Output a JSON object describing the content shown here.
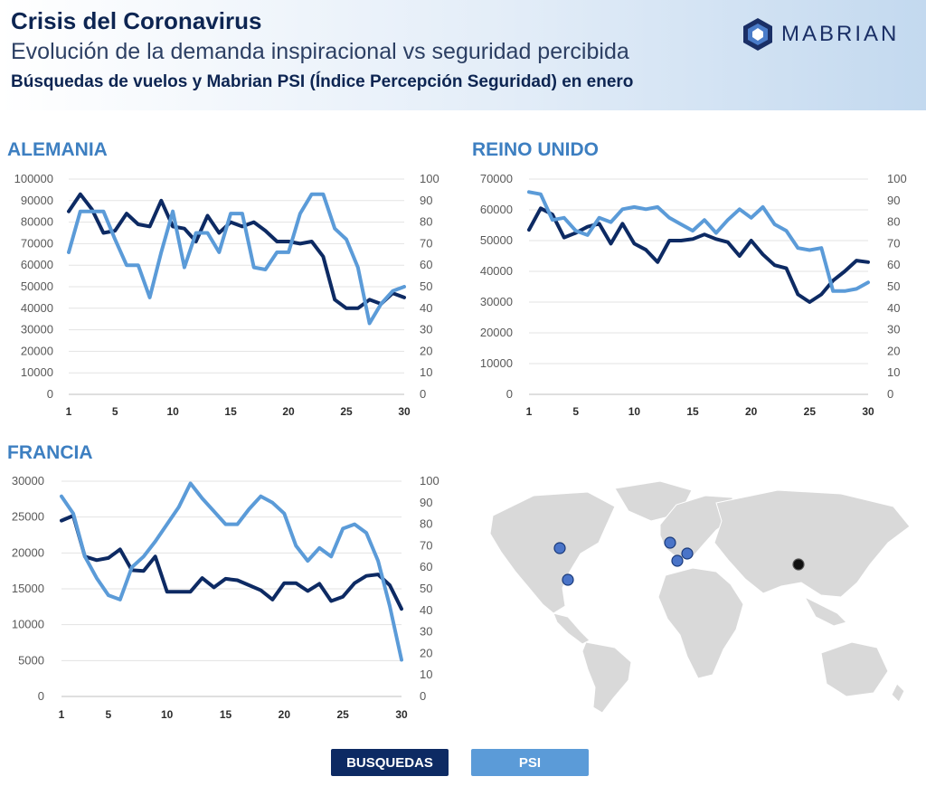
{
  "header": {
    "title": "Crisis del Coronavirus",
    "subtitle": "Evolución de la demanda inspiracional vs seguridad percibida",
    "subtitle2": "Búsquedas de vuelos y Mabrian PSI (Índice Percepción Seguridad) en enero"
  },
  "logo": {
    "text": "MABRIAN"
  },
  "legend": {
    "busquedas_label": "BUSQUEDAS",
    "psi_label": "PSI",
    "busquedas_color": "#0d2a63",
    "psi_color": "#5b9bd8"
  },
  "chart_data": [
    {
      "type": "line",
      "title": "ALEMANIA",
      "x": [
        1,
        2,
        3,
        4,
        5,
        6,
        7,
        8,
        9,
        10,
        11,
        12,
        13,
        14,
        15,
        16,
        17,
        18,
        19,
        20,
        21,
        22,
        23,
        24,
        25,
        26,
        27,
        28,
        29,
        30
      ],
      "x_ticks": [
        "1",
        "5",
        "10",
        "15",
        "20",
        "25",
        "30"
      ],
      "y_left_ticks": [
        "0",
        "10000",
        "20000",
        "30000",
        "40000",
        "50000",
        "60000",
        "70000",
        "80000",
        "90000",
        "100000"
      ],
      "y_right_ticks": [
        "0",
        "10",
        "20",
        "30",
        "40",
        "50",
        "60",
        "70",
        "80",
        "90",
        "100"
      ],
      "ylim_left": [
        0,
        100000
      ],
      "ylim_right": [
        0,
        100
      ],
      "series": [
        {
          "name": "BUSQUEDAS",
          "axis": "left",
          "color": "#0d2a63",
          "values": [
            85000,
            93000,
            86000,
            75000,
            76000,
            84000,
            79000,
            78000,
            90000,
            78000,
            77000,
            71000,
            83000,
            75000,
            80000,
            78000,
            80000,
            76000,
            71000,
            71000,
            70000,
            71000,
            64000,
            44000,
            40000,
            40000,
            44000,
            42000,
            47000,
            45000
          ]
        },
        {
          "name": "PSI",
          "axis": "right",
          "color": "#5b9bd8",
          "values": [
            66,
            85,
            85,
            85,
            72,
            60,
            60,
            45,
            66,
            85,
            59,
            75,
            75,
            66,
            84,
            84,
            59,
            58,
            66,
            66,
            84,
            93,
            93,
            77,
            72,
            59,
            33,
            42,
            48,
            50
          ]
        }
      ]
    },
    {
      "type": "line",
      "title": "REINO UNIDO",
      "x": [
        1,
        2,
        3,
        4,
        5,
        6,
        7,
        8,
        9,
        10,
        11,
        12,
        13,
        14,
        15,
        16,
        17,
        18,
        19,
        20,
        21,
        22,
        23,
        24,
        25,
        26,
        27,
        28,
        29,
        30
      ],
      "x_ticks": [
        "1",
        "5",
        "10",
        "15",
        "20",
        "25",
        "30"
      ],
      "y_left_ticks": [
        "0",
        "10000",
        "20000",
        "30000",
        "40000",
        "50000",
        "60000",
        "70000"
      ],
      "y_right_ticks": [
        "0",
        "10",
        "20",
        "30",
        "40",
        "50",
        "60",
        "70",
        "80",
        "90",
        "100"
      ],
      "ylim_left": [
        0,
        70000
      ],
      "ylim_right": [
        0,
        100
      ],
      "series": [
        {
          "name": "BUSQUEDAS",
          "axis": "left",
          "color": "#0d2a63",
          "values": [
            53500,
            60500,
            58500,
            51000,
            52500,
            54500,
            55500,
            49000,
            55500,
            49000,
            47000,
            43000,
            50000,
            50000,
            50500,
            52000,
            50500,
            49500,
            45000,
            50000,
            45500,
            42000,
            41000,
            32500,
            30000,
            32500,
            37000,
            40000,
            43500,
            43000
          ]
        },
        {
          "name": "PSI",
          "axis": "right",
          "color": "#5b9bd8",
          "values": [
            94,
            93,
            81,
            82,
            76,
            74,
            82,
            80,
            86,
            87,
            86,
            87,
            82,
            79,
            76,
            81,
            75,
            81,
            86,
            82,
            87,
            79,
            76,
            68,
            67,
            68,
            48,
            48,
            49,
            52
          ]
        }
      ]
    },
    {
      "type": "line",
      "title": "FRANCIA",
      "x": [
        1,
        2,
        3,
        4,
        5,
        6,
        7,
        8,
        9,
        10,
        11,
        12,
        13,
        14,
        15,
        16,
        17,
        18,
        19,
        20,
        21,
        22,
        23,
        24,
        25,
        26,
        27,
        28,
        29,
        30
      ],
      "x_ticks": [
        "1",
        "5",
        "10",
        "15",
        "20",
        "25",
        "30"
      ],
      "y_left_ticks": [
        "0",
        "5000",
        "10000",
        "15000",
        "20000",
        "25000",
        "30000"
      ],
      "y_right_ticks": [
        "0",
        "10",
        "20",
        "30",
        "40",
        "50",
        "60",
        "70",
        "80",
        "90",
        "100"
      ],
      "ylim_left": [
        0,
        30000
      ],
      "ylim_right": [
        0,
        100
      ],
      "series": [
        {
          "name": "BUSQUEDAS",
          "axis": "left",
          "color": "#0d2a63",
          "values": [
            24500,
            25200,
            19500,
            19000,
            19300,
            20500,
            17600,
            17500,
            19500,
            14600,
            14600,
            14600,
            16500,
            15200,
            16400,
            16200,
            15500,
            14800,
            13500,
            15800,
            15800,
            14700,
            15700,
            13300,
            13900,
            15800,
            16800,
            17000,
            15500,
            12200
          ]
        },
        {
          "name": "PSI",
          "axis": "right",
          "color": "#5b9bd8",
          "values": [
            93,
            85,
            65,
            55,
            47,
            45,
            60,
            65,
            72,
            80,
            88,
            99,
            92,
            86,
            80,
            80,
            87,
            93,
            90,
            85,
            70,
            63,
            69,
            65,
            78,
            80,
            76,
            63,
            42,
            17
          ]
        }
      ]
    }
  ]
}
